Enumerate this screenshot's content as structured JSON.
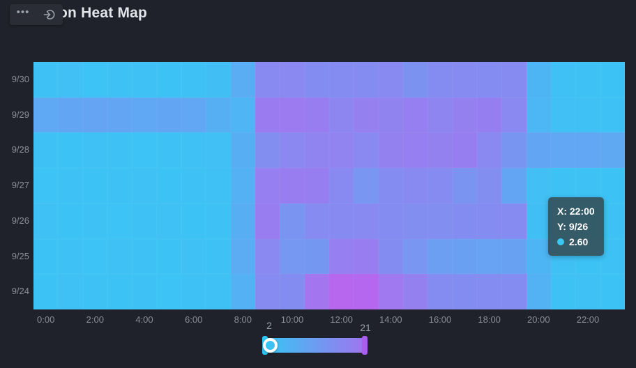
{
  "header": {
    "title_visible": "on Heat Map",
    "toolbar": {
      "more_glyph": "•••",
      "icons": [
        "more-options-icon",
        "restore-icon"
      ]
    }
  },
  "chart_data": {
    "type": "heatmap",
    "x_categories": [
      "0:00",
      "1:00",
      "2:00",
      "3:00",
      "4:00",
      "5:00",
      "6:00",
      "7:00",
      "8:00",
      "9:00",
      "10:00",
      "11:00",
      "12:00",
      "13:00",
      "14:00",
      "15:00",
      "16:00",
      "17:00",
      "18:00",
      "19:00",
      "20:00",
      "21:00",
      "22:00",
      "23:00"
    ],
    "x_label_interval": 2,
    "y_categories_top_to_bottom": [
      "9/30",
      "9/29",
      "9/28",
      "9/27",
      "9/26",
      "9/25",
      "9/24"
    ],
    "values_by_row": [
      [
        3.0,
        3.2,
        2.8,
        3.0,
        3.1,
        2.9,
        3.0,
        3.4,
        6.8,
        13.3,
        13.5,
        12.6,
        12.8,
        12.8,
        13.3,
        11.6,
        12.7,
        12.9,
        12.7,
        12.9,
        5.2,
        3.1,
        3.0,
        2.9
      ],
      [
        7.6,
        8.0,
        8.4,
        8.2,
        7.7,
        8.0,
        7.9,
        6.3,
        5.3,
        15.9,
        16.0,
        15.5,
        13.9,
        15.0,
        14.4,
        15.2,
        14.1,
        15.0,
        15.1,
        13.4,
        4.9,
        3.3,
        3.1,
        3.0
      ],
      [
        3.0,
        2.9,
        3.1,
        3.0,
        2.8,
        3.0,
        3.1,
        3.2,
        6.6,
        12.5,
        13.6,
        14.3,
        14.5,
        13.5,
        14.7,
        15.2,
        14.7,
        15.3,
        13.5,
        11.2,
        8.0,
        7.8,
        7.8,
        7.5
      ],
      [
        2.8,
        3.0,
        2.9,
        3.0,
        3.1,
        2.9,
        3.0,
        3.1,
        6.0,
        15.2,
        15.5,
        15.3,
        13.3,
        11.0,
        12.7,
        13.2,
        12.9,
        11.3,
        12.5,
        8.3,
        3.5,
        3.0,
        3.0,
        2.9
      ],
      [
        3.1,
        2.9,
        3.0,
        2.8,
        3.0,
        3.1,
        2.9,
        3.0,
        6.6,
        15.5,
        11.3,
        13.0,
        13.1,
        13.2,
        12.7,
        12.5,
        12.5,
        12.6,
        12.8,
        12.9,
        3.4,
        3.0,
        2.6,
        3.0
      ],
      [
        2.9,
        3.0,
        2.8,
        3.1,
        3.0,
        2.9,
        3.1,
        3.0,
        7.0,
        13.5,
        10.8,
        10.5,
        15.2,
        15.5,
        12.6,
        11.0,
        9.3,
        9.1,
        8.8,
        9.0,
        5.2,
        3.1,
        2.9,
        3.0
      ],
      [
        2.9,
        3.1,
        3.0,
        2.9,
        3.0,
        2.8,
        3.0,
        3.1,
        6.0,
        12.9,
        12.6,
        17.0,
        19.8,
        19.5,
        16.5,
        15.0,
        12.7,
        12.6,
        12.7,
        12.8,
        5.8,
        3.0,
        3.1,
        2.9
      ]
    ],
    "value_range": {
      "min": 2,
      "max": 21
    },
    "color_scale": {
      "low": "#37c7f5",
      "high": "#c05fee"
    },
    "legend_position": "bottom"
  },
  "tooltip": {
    "line_x": "X: 22:00",
    "line_y": "Y: 9/26",
    "value": "2.60",
    "marker_color": "#3dc7f4"
  },
  "slider": {
    "min_label": "2",
    "max_label": "21",
    "gradient": [
      "#35c7f4",
      "#a273ef"
    ],
    "left_cap_color": "#2ec6f5",
    "right_cap_color": "#aa5ef0"
  },
  "colors": {
    "background": "#20222b",
    "axis_label": "#8b8e96"
  }
}
